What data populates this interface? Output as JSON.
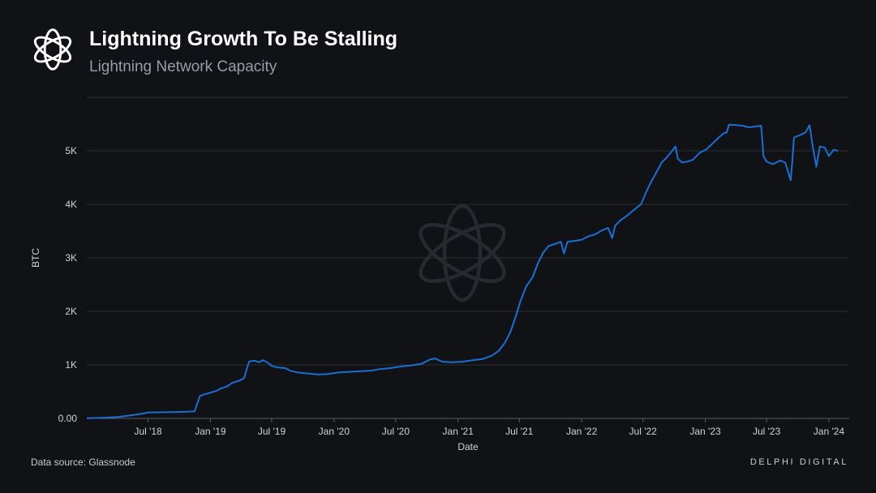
{
  "header": {
    "title": "Lightning Growth To Be Stalling",
    "subtitle": "Lightning Network Capacity",
    "logo_icon": "delphi-flower-logo-icon"
  },
  "footer": {
    "source": "Data source: Glassnode",
    "brand": "DELPHI DIGITAL"
  },
  "watermark_icon": "delphi-flower-watermark-icon",
  "colors": {
    "background": "#111216",
    "line": "#1a6fd4",
    "grid": "#2c2e33",
    "text": "#d0d2d6"
  },
  "chart_data": {
    "type": "line",
    "title": "Lightning Growth To Be Stalling",
    "subtitle": "Lightning Network Capacity",
    "xlabel": "Date",
    "ylabel": "BTC",
    "ylim": [
      0,
      6000
    ],
    "xlim": [
      "2018-01-01",
      "2024-03-01"
    ],
    "grid": true,
    "y_ticks": [
      {
        "value": 0,
        "label": "0.00"
      },
      {
        "value": 1000,
        "label": "1K"
      },
      {
        "value": 2000,
        "label": "2K"
      },
      {
        "value": 3000,
        "label": "3K"
      },
      {
        "value": 4000,
        "label": "4K"
      },
      {
        "value": 5000,
        "label": "5K"
      }
    ],
    "x_ticks": [
      {
        "date": "2018-07-01",
        "label": "Jul '18"
      },
      {
        "date": "2019-01-01",
        "label": "Jan '19"
      },
      {
        "date": "2019-07-01",
        "label": "Jul '19"
      },
      {
        "date": "2020-01-01",
        "label": "Jan '20"
      },
      {
        "date": "2020-07-01",
        "label": "Jul '20"
      },
      {
        "date": "2021-01-01",
        "label": "Jan '21"
      },
      {
        "date": "2021-07-01",
        "label": "Jul '21"
      },
      {
        "date": "2022-01-01",
        "label": "Jan '22"
      },
      {
        "date": "2022-07-01",
        "label": "Jul '22"
      },
      {
        "date": "2023-01-01",
        "label": "Jan '23"
      },
      {
        "date": "2023-07-01",
        "label": "Jul '23"
      },
      {
        "date": "2024-01-01",
        "label": "Jan '24"
      }
    ],
    "series": [
      {
        "values": [
          [
            "2018-01-01",
            5
          ],
          [
            "2018-02-15",
            10
          ],
          [
            "2018-04-01",
            25
          ],
          [
            "2018-05-15",
            60
          ],
          [
            "2018-06-15",
            90
          ],
          [
            "2018-07-01",
            110
          ],
          [
            "2018-08-15",
            115
          ],
          [
            "2018-10-01",
            120
          ],
          [
            "2018-11-15",
            130
          ],
          [
            "2018-12-01",
            420
          ],
          [
            "2018-12-15",
            450
          ],
          [
            "2019-01-01",
            480
          ],
          [
            "2019-01-20",
            520
          ],
          [
            "2019-02-01",
            560
          ],
          [
            "2019-02-20",
            600
          ],
          [
            "2019-03-05",
            660
          ],
          [
            "2019-03-25",
            700
          ],
          [
            "2019-04-10",
            750
          ],
          [
            "2019-04-25",
            1060
          ],
          [
            "2019-05-10",
            1080
          ],
          [
            "2019-05-25",
            1050
          ],
          [
            "2019-06-05",
            1090
          ],
          [
            "2019-06-20",
            1040
          ],
          [
            "2019-07-01",
            980
          ],
          [
            "2019-07-20",
            950
          ],
          [
            "2019-08-10",
            940
          ],
          [
            "2019-08-25",
            890
          ],
          [
            "2019-09-15",
            860
          ],
          [
            "2019-10-15",
            840
          ],
          [
            "2019-11-15",
            820
          ],
          [
            "2019-12-15",
            830
          ],
          [
            "2020-01-15",
            860
          ],
          [
            "2020-02-15",
            870
          ],
          [
            "2020-03-15",
            880
          ],
          [
            "2020-04-15",
            890
          ],
          [
            "2020-05-15",
            920
          ],
          [
            "2020-06-15",
            940
          ],
          [
            "2020-07-15",
            970
          ],
          [
            "2020-08-15",
            990
          ],
          [
            "2020-09-15",
            1020
          ],
          [
            "2020-10-10",
            1100
          ],
          [
            "2020-10-25",
            1120
          ],
          [
            "2020-11-15",
            1060
          ],
          [
            "2020-12-15",
            1050
          ],
          [
            "2021-01-15",
            1060
          ],
          [
            "2021-02-15",
            1090
          ],
          [
            "2021-03-15",
            1110
          ],
          [
            "2021-04-10",
            1170
          ],
          [
            "2021-05-01",
            1260
          ],
          [
            "2021-05-20",
            1420
          ],
          [
            "2021-06-05",
            1620
          ],
          [
            "2021-06-20",
            1900
          ],
          [
            "2021-07-05",
            2200
          ],
          [
            "2021-07-20",
            2450
          ],
          [
            "2021-08-10",
            2650
          ],
          [
            "2021-08-25",
            2900
          ],
          [
            "2021-09-10",
            3100
          ],
          [
            "2021-09-25",
            3220
          ],
          [
            "2021-10-15",
            3260
          ],
          [
            "2021-11-01",
            3300
          ],
          [
            "2021-11-10",
            3080
          ],
          [
            "2021-11-20",
            3300
          ],
          [
            "2021-12-15",
            3320
          ],
          [
            "2022-01-01",
            3340
          ],
          [
            "2022-01-20",
            3400
          ],
          [
            "2022-02-10",
            3440
          ],
          [
            "2022-03-01",
            3510
          ],
          [
            "2022-03-20",
            3560
          ],
          [
            "2022-04-01",
            3370
          ],
          [
            "2022-04-10",
            3600
          ],
          [
            "2022-04-25",
            3700
          ],
          [
            "2022-05-15",
            3790
          ],
          [
            "2022-06-05",
            3900
          ],
          [
            "2022-06-25",
            4000
          ],
          [
            "2022-07-10",
            4220
          ],
          [
            "2022-07-25",
            4420
          ],
          [
            "2022-08-10",
            4600
          ],
          [
            "2022-08-25",
            4780
          ],
          [
            "2022-09-10",
            4880
          ],
          [
            "2022-09-25",
            5000
          ],
          [
            "2022-10-05",
            5080
          ],
          [
            "2022-10-12",
            4850
          ],
          [
            "2022-10-25",
            4780
          ],
          [
            "2022-11-10",
            4800
          ],
          [
            "2022-11-25",
            4830
          ],
          [
            "2022-12-15",
            4960
          ],
          [
            "2023-01-05",
            5030
          ],
          [
            "2023-01-25",
            5150
          ],
          [
            "2023-02-10",
            5250
          ],
          [
            "2023-02-25",
            5330
          ],
          [
            "2023-03-05",
            5340
          ],
          [
            "2023-03-12",
            5490
          ],
          [
            "2023-04-01",
            5480
          ],
          [
            "2023-04-20",
            5470
          ],
          [
            "2023-05-10",
            5440
          ],
          [
            "2023-05-25",
            5450
          ],
          [
            "2023-06-15",
            5470
          ],
          [
            "2023-06-22",
            4900
          ],
          [
            "2023-07-01",
            4800
          ],
          [
            "2023-07-20",
            4750
          ],
          [
            "2023-08-10",
            4820
          ],
          [
            "2023-08-25",
            4780
          ],
          [
            "2023-09-10",
            4450
          ],
          [
            "2023-09-15",
            4800
          ],
          [
            "2023-09-20",
            5250
          ],
          [
            "2023-10-10",
            5300
          ],
          [
            "2023-10-25",
            5350
          ],
          [
            "2023-11-05",
            5480
          ],
          [
            "2023-11-15",
            5050
          ],
          [
            "2023-11-25",
            4700
          ],
          [
            "2023-12-05",
            5080
          ],
          [
            "2023-12-20",
            5060
          ],
          [
            "2024-01-01",
            4900
          ],
          [
            "2024-01-15",
            5020
          ],
          [
            "2024-01-28",
            5000
          ]
        ]
      }
    ]
  }
}
